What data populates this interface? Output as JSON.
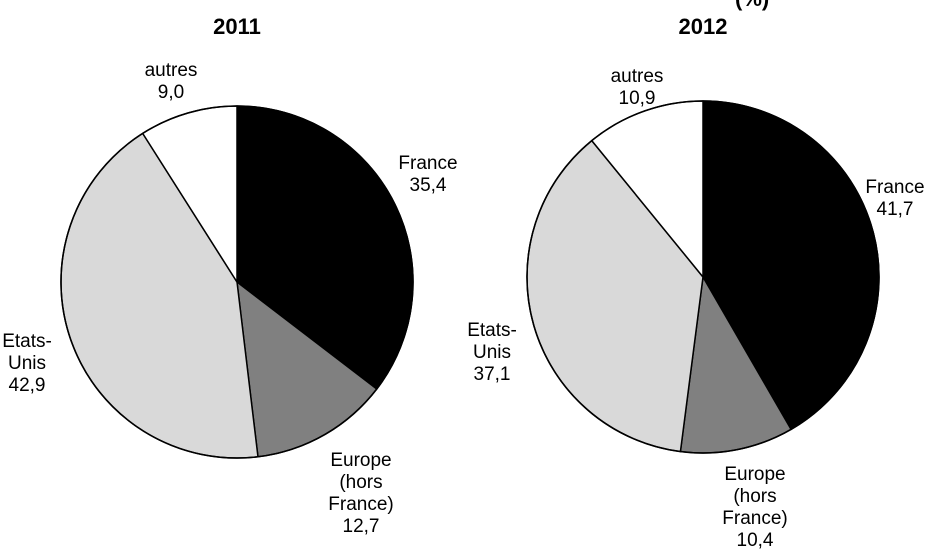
{
  "chart_data": [
    {
      "type": "pie",
      "title": "2011",
      "slices": [
        {
          "label": [
            "France"
          ],
          "value": 35.4,
          "value_text": "35,4",
          "color": "#000000"
        },
        {
          "label": [
            "Europe",
            "(hors",
            "France)"
          ],
          "value": 12.7,
          "value_text": "12,7",
          "color": "#808080"
        },
        {
          "label": [
            "Etats-",
            "Unis"
          ],
          "value": 42.9,
          "value_text": "42,9",
          "color": "#d9d9d9"
        },
        {
          "label": [
            "autres"
          ],
          "value": 9.0,
          "value_text": "9,0",
          "color": "#ffffff"
        }
      ]
    },
    {
      "type": "pie",
      "title": "2012",
      "slices": [
        {
          "label": [
            "France"
          ],
          "value": 41.7,
          "value_text": "41,7",
          "color": "#000000"
        },
        {
          "label": [
            "Europe",
            "(hors",
            "France)"
          ],
          "value": 10.4,
          "value_text": "10,4",
          "color": "#808080"
        },
        {
          "label": [
            "Etats-",
            "Unis"
          ],
          "value": 37.1,
          "value_text": "37,1",
          "color": "#d9d9d9"
        },
        {
          "label": [
            "autres"
          ],
          "value": 10.9,
          "value_text": "10,9",
          "color": "#ffffff"
        }
      ]
    }
  ],
  "clipped_header_fragment": "(%)"
}
